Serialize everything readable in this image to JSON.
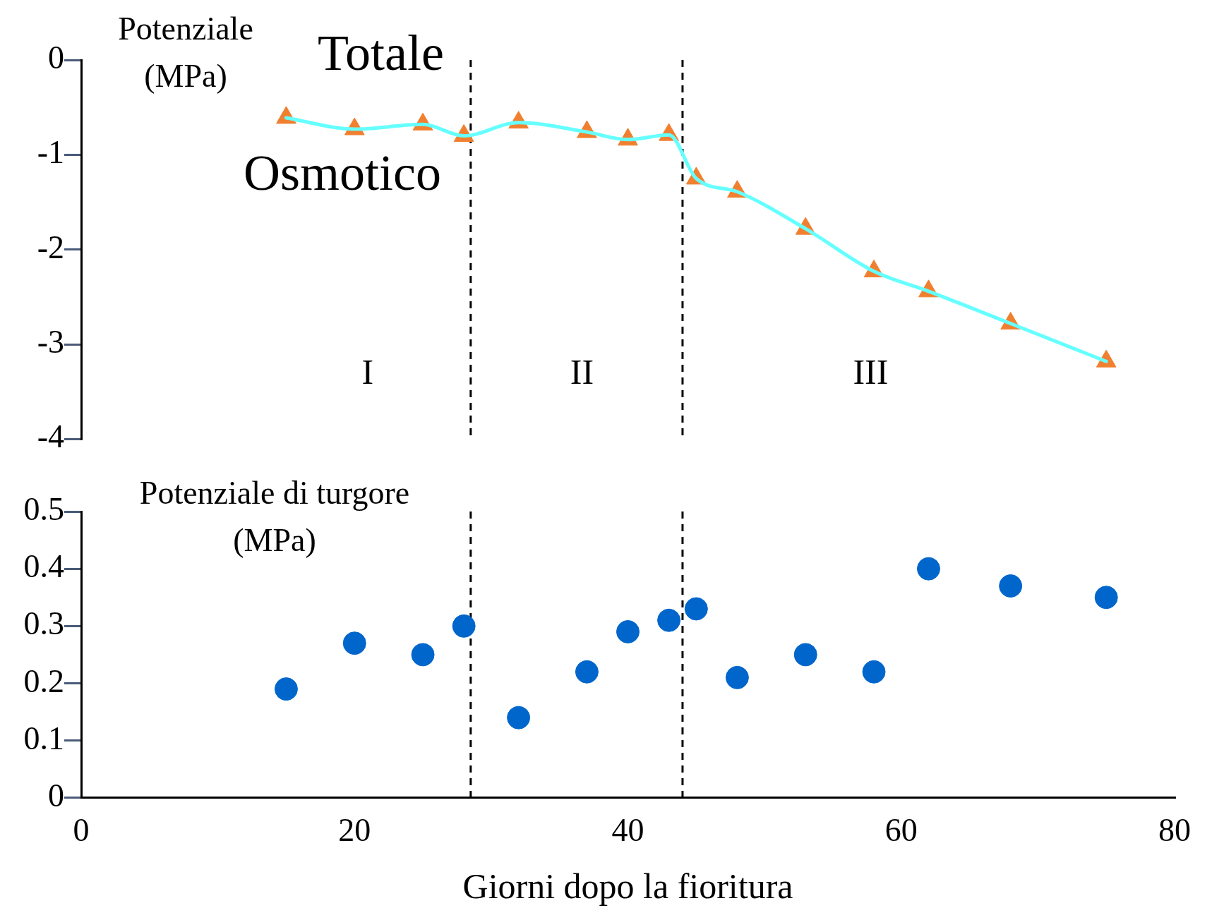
{
  "chart_data": [
    {
      "type": "line",
      "ylabel": "Potenziale (MPa)",
      "xlim": [
        0,
        80
      ],
      "ylim": [
        -4,
        0
      ],
      "yticks": [
        -4,
        -3,
        -2,
        -1,
        0
      ],
      "tick_labels": "y",
      "grid": false,
      "legend": false,
      "x": [
        15,
        20,
        25,
        28,
        32,
        37,
        40,
        43,
        45,
        48,
        53,
        58,
        62,
        68,
        75
      ],
      "series": [
        {
          "name": "Totale",
          "color": "#66ffff",
          "marker": "none",
          "values": [
            -0.61,
            -0.73,
            -0.68,
            -0.8,
            -0.66,
            -0.76,
            -0.84,
            -0.79,
            -1.25,
            -1.39,
            -1.78,
            -2.23,
            -2.44,
            -2.78,
            -3.18
          ]
        },
        {
          "name": "Osmotico",
          "type": "scatter",
          "color": "#f08030",
          "marker": "triangle",
          "values": [
            -0.61,
            -0.73,
            -0.68,
            -0.8,
            -0.66,
            -0.76,
            -0.84,
            -0.79,
            -1.25,
            -1.39,
            -1.78,
            -2.23,
            -2.44,
            -2.78,
            -3.18
          ]
        }
      ],
      "ref_lines": [
        {
          "axis": "x",
          "value": 28.5,
          "line_style": "dashed",
          "color": "#000000"
        },
        {
          "axis": "x",
          "value": 44,
          "line_style": "dashed",
          "color": "#000000"
        }
      ],
      "annotations": [
        "I",
        "II",
        "III"
      ]
    },
    {
      "type": "scatter",
      "ylabel": "Potenziale di turgore (MPa)",
      "xlabel": "Giorni dopo la fioritura",
      "xlim": [
        0,
        80
      ],
      "xticks": [
        0,
        20,
        40,
        60,
        80
      ],
      "ylim": [
        0,
        0.5
      ],
      "yticks": [
        0,
        0.1,
        0.2,
        0.3,
        0.4,
        0.5
      ],
      "grid": false,
      "legend": false,
      "marker": "circle",
      "x": [
        15,
        20,
        25,
        28,
        32,
        37,
        40,
        43,
        45,
        48,
        53,
        58,
        62,
        68,
        75
      ],
      "series": [
        {
          "color": "#0066cc",
          "values": [
            0.19,
            0.27,
            0.25,
            0.3,
            0.14,
            0.22,
            0.29,
            0.31,
            0.33,
            0.21,
            0.25,
            0.22,
            0.4,
            0.37,
            0.35
          ]
        }
      ],
      "ref_lines": [
        {
          "axis": "x",
          "value": 28.5,
          "line_style": "dashed",
          "color": "#000000"
        },
        {
          "axis": "x",
          "value": 44,
          "line_style": "dashed",
          "color": "#000000"
        }
      ]
    }
  ]
}
